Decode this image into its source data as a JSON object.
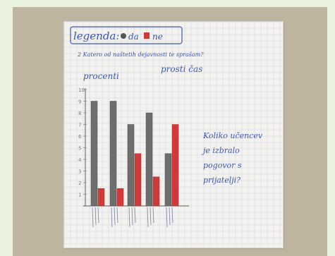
{
  "photo": {
    "legend": {
      "title": "legenda:",
      "yes_label": "da",
      "no_label": "ne"
    },
    "question": "2 Katero od naštetih dejavnosti te sprašam?",
    "percent_label": "procenti",
    "free_time_label": "prosti čas",
    "side_note": [
      "Koliko učencev",
      "je izbralo",
      "pogovor s",
      "prijatelji?"
    ],
    "y_ticks": [
      "10",
      "9",
      "8",
      "7",
      "6",
      "5",
      "4",
      "3",
      "2",
      "1"
    ],
    "bars": [
      {
        "da": 9,
        "ne": 1.5
      },
      {
        "da": 9,
        "ne": 1.5
      },
      {
        "da": 7,
        "ne": 4.5
      },
      {
        "da": 8,
        "ne": 2.5
      },
      {
        "da": 4.5,
        "ne": 7
      }
    ],
    "colors": {
      "da": "#6e6e6e",
      "ne": "#d23a3a",
      "ink": "#3d56b3",
      "grid": "#c9d3e3"
    }
  }
}
